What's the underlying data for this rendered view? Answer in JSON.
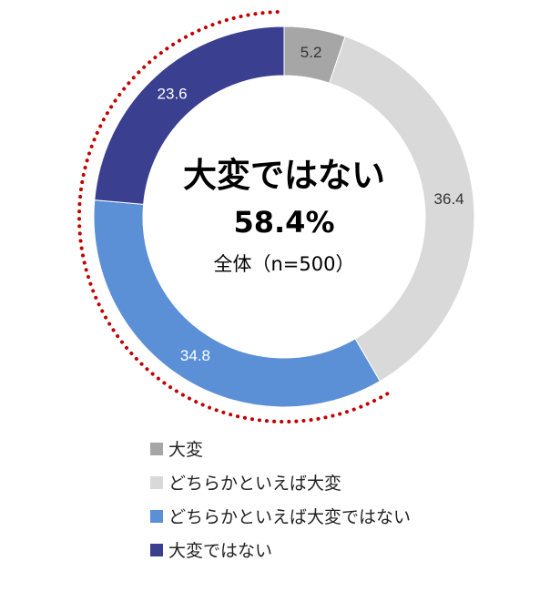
{
  "chart_data": {
    "type": "pie",
    "variant": "donut",
    "center": {
      "title": "大変ではない",
      "value": "58.4%",
      "sample": "全体（n=500）"
    },
    "series": [
      {
        "name": "大変",
        "value": 5.2,
        "label": "5.2",
        "color": "#a6a6a6",
        "label_color": "#333333"
      },
      {
        "name": "どちらかといえば大変",
        "value": 36.4,
        "label": "36.4",
        "color": "#d9d9d9",
        "label_color": "#333333"
      },
      {
        "name": "どちらかといえば大変ではない",
        "value": 34.8,
        "label": "34.8",
        "color": "#5b8fd6",
        "label_color": "#ffffff"
      },
      {
        "name": "大変ではない",
        "value": 23.6,
        "label": "23.6",
        "color": "#3a3f8f",
        "label_color": "#ffffff"
      }
    ],
    "start_angle_deg": 0,
    "direction": "clockwise",
    "highlight": {
      "style": "dotted-arc",
      "color": "#c00000",
      "covers": [
        "どちらかといえば大変ではない",
        "大変ではない"
      ]
    },
    "legend": {
      "placement": "bottom",
      "orientation": "vertical"
    }
  }
}
